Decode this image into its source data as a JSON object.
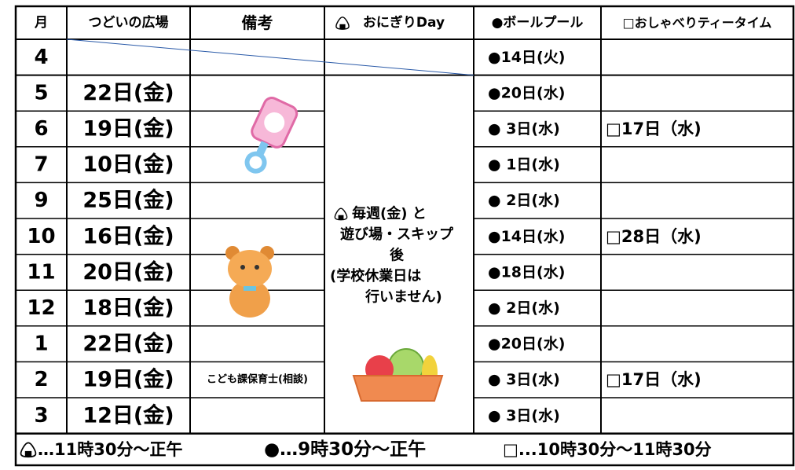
{
  "header": [
    "月",
    "つどいの広場",
    "備考",
    "おにぎりDay",
    "●ボールプール",
    "□おしゃべりティータイム"
  ],
  "rows": [
    {
      "month": "4",
      "ball": "●14日(火)"
    },
    {
      "month": "5",
      "hiroba": "22日(金)",
      "ball": "●20日(水)"
    },
    {
      "month": "6",
      "hiroba": "19日(金)",
      "ball": "● 3日(水)",
      "tea": "□17日（水)"
    },
    {
      "month": "7",
      "hiroba": "10日(金)",
      "ball": "● 1日(水)"
    },
    {
      "month": "9",
      "hiroba": "25日(金)",
      "ball": "● 2日(水)"
    },
    {
      "month": "10",
      "hiroba": "16日(金)",
      "ball": "●14日(水)",
      "tea": "□28日（水)"
    },
    {
      "month": "11",
      "hiroba": "20日(金)",
      "ball": "●18日(水)"
    },
    {
      "month": "12",
      "hiroba": "18日(金)",
      "ball": "● 2日(水)"
    },
    {
      "month": "1",
      "hiroba": "22日(金)",
      "ball": "●20日(水)"
    },
    {
      "month": "2",
      "hiroba": "19日(金)",
      "note": "こども課保育士(相談)",
      "ball": "● 3日(水)",
      "tea": "□17日（水)"
    },
    {
      "month": "3",
      "hiroba": "12日(金)",
      "ball": "● 3日(水)"
    }
  ],
  "onigiri_note": [
    "毎週(金) と",
    "遊び場・スキップ",
    "後",
    "(学校休業日は",
    "行いません)"
  ],
  "legend": [
    "…11時30分～正午",
    "●…9時30分～正午",
    "□...10時30分～11時30分"
  ]
}
